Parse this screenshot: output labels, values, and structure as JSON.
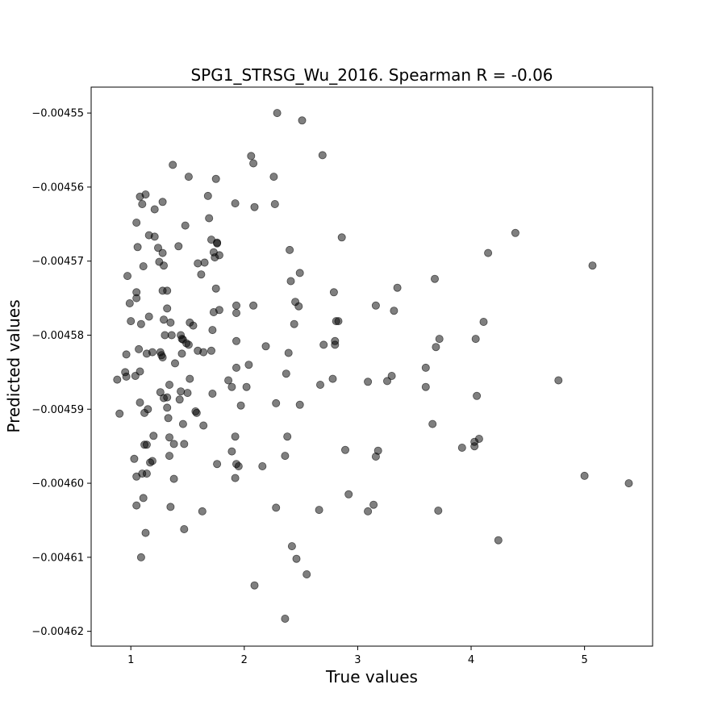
{
  "chart_data": {
    "type": "scatter",
    "title": "SPG1_STRSG_Wu_2016. Spearman R = -0.06",
    "xlabel": "True values",
    "ylabel": "Predicted values",
    "xlim": [
      0.65,
      5.6
    ],
    "ylim": [
      -0.004622,
      -0.0045465
    ],
    "x_ticks": [
      1,
      2,
      3,
      4,
      5
    ],
    "x_tick_labels": [
      "1",
      "2",
      "3",
      "4",
      "5"
    ],
    "y_ticks": [
      -0.00455,
      -0.00456,
      -0.00457,
      -0.00458,
      -0.00459,
      -0.0046,
      -0.00461,
      -0.00462
    ],
    "y_tick_labels": [
      "−0.00455",
      "−0.00456",
      "−0.00457",
      "−0.00458",
      "−0.00459",
      "−0.00460",
      "−0.00461",
      "−0.00462"
    ],
    "grid": false,
    "marker_color": "#000000",
    "marker_opacity": 0.5,
    "points": [
      [
        2.29,
        -0.00455
      ],
      [
        2.51,
        -0.004551
      ],
      [
        2.69,
        -0.0045557
      ],
      [
        2.06,
        -0.0045558
      ],
      [
        2.08,
        -0.0045568
      ],
      [
        1.37,
        -0.004557
      ],
      [
        1.51,
        -0.0045586
      ],
      [
        1.75,
        -0.0045589
      ],
      [
        2.26,
        -0.0045586
      ],
      [
        1.08,
        -0.0045613
      ],
      [
        1.13,
        -0.004561
      ],
      [
        1.68,
        -0.0045612
      ],
      [
        1.28,
        -0.004562
      ],
      [
        1.1,
        -0.0045623
      ],
      [
        1.92,
        -0.0045622
      ],
      [
        2.09,
        -0.0045627
      ],
      [
        2.27,
        -0.0045623
      ],
      [
        1.21,
        -0.004563
      ],
      [
        1.05,
        -0.0045648
      ],
      [
        1.48,
        -0.0045652
      ],
      [
        1.69,
        -0.0045642
      ],
      [
        1.16,
        -0.0045665
      ],
      [
        1.21,
        -0.0045667
      ],
      [
        1.06,
        -0.0045681
      ],
      [
        1.24,
        -0.0045682
      ],
      [
        1.42,
        -0.004568
      ],
      [
        1.71,
        -0.0045671
      ],
      [
        1.76,
        -0.0045675
      ],
      [
        1.76,
        -0.0045676
      ],
      [
        1.28,
        -0.0045689
      ],
      [
        1.73,
        -0.0045688
      ],
      [
        1.74,
        -0.0045695
      ],
      [
        1.78,
        -0.0045692
      ],
      [
        2.4,
        -0.0045685
      ],
      [
        2.86,
        -0.0045668
      ],
      [
        4.39,
        -0.0045662
      ],
      [
        4.15,
        -0.0045689
      ],
      [
        5.07,
        -0.0045706
      ],
      [
        1.25,
        -0.0045701
      ],
      [
        1.29,
        -0.0045706
      ],
      [
        1.11,
        -0.0045707
      ],
      [
        1.59,
        -0.0045703
      ],
      [
        1.65,
        -0.0045702
      ],
      [
        0.97,
        -0.004572
      ],
      [
        1.62,
        -0.0045718
      ],
      [
        2.49,
        -0.0045716
      ],
      [
        2.41,
        -0.0045727
      ],
      [
        3.68,
        -0.0045724
      ],
      [
        1.28,
        -0.004574
      ],
      [
        1.32,
        -0.004574
      ],
      [
        1.75,
        -0.0045737
      ],
      [
        1.05,
        -0.0045742
      ],
      [
        3.35,
        -0.0045736
      ],
      [
        2.79,
        -0.0045742
      ],
      [
        1.05,
        -0.004575
      ],
      [
        0.99,
        -0.0045757
      ],
      [
        2.45,
        -0.0045755
      ],
      [
        2.48,
        -0.0045761
      ],
      [
        2.08,
        -0.004576
      ],
      [
        1.93,
        -0.004576
      ],
      [
        3.16,
        -0.004576
      ],
      [
        1.32,
        -0.0045764
      ],
      [
        1.78,
        -0.0045766
      ],
      [
        1.73,
        -0.0045769
      ],
      [
        1.93,
        -0.004577
      ],
      [
        3.32,
        -0.0045767
      ],
      [
        1.16,
        -0.0045775
      ],
      [
        1.29,
        -0.0045779
      ],
      [
        1.0,
        -0.0045781
      ],
      [
        1.09,
        -0.0045785
      ],
      [
        1.35,
        -0.0045783
      ],
      [
        1.52,
        -0.0045783
      ],
      [
        1.55,
        -0.0045787
      ],
      [
        2.44,
        -0.0045785
      ],
      [
        2.81,
        -0.0045781
      ],
      [
        2.83,
        -0.0045781
      ],
      [
        4.11,
        -0.0045782
      ],
      [
        1.72,
        -0.0045793
      ],
      [
        1.3,
        -0.00458
      ],
      [
        1.36,
        -0.00458
      ],
      [
        1.44,
        -0.00458
      ],
      [
        1.45,
        -0.0045805
      ],
      [
        1.46,
        -0.0045806
      ],
      [
        1.49,
        -0.0045811
      ],
      [
        1.51,
        -0.0045813
      ],
      [
        3.72,
        -0.0045805
      ],
      [
        4.04,
        -0.0045805
      ],
      [
        1.93,
        -0.0045808
      ],
      [
        2.8,
        -0.0045808
      ],
      [
        2.7,
        -0.0045813
      ],
      [
        2.8,
        -0.0045813
      ],
      [
        2.19,
        -0.0045815
      ],
      [
        3.69,
        -0.0045816
      ],
      [
        1.07,
        -0.0045819
      ],
      [
        0.96,
        -0.0045826
      ],
      [
        1.14,
        -0.0045825
      ],
      [
        1.19,
        -0.0045823
      ],
      [
        1.26,
        -0.0045823
      ],
      [
        1.27,
        -0.0045827
      ],
      [
        1.28,
        -0.004583
      ],
      [
        1.45,
        -0.0045825
      ],
      [
        1.59,
        -0.0045821
      ],
      [
        1.64,
        -0.0045823
      ],
      [
        1.71,
        -0.0045821
      ],
      [
        2.39,
        -0.0045824
      ],
      [
        1.39,
        -0.0045838
      ],
      [
        2.04,
        -0.004584
      ],
      [
        1.93,
        -0.0045844
      ],
      [
        3.6,
        -0.0045844
      ],
      [
        0.95,
        -0.004585
      ],
      [
        1.08,
        -0.0045849
      ],
      [
        0.96,
        -0.0045856
      ],
      [
        1.04,
        -0.0045855
      ],
      [
        2.37,
        -0.0045852
      ],
      [
        3.3,
        -0.0045855
      ],
      [
        1.52,
        -0.0045859
      ],
      [
        2.78,
        -0.0045859
      ],
      [
        0.88,
        -0.004586
      ],
      [
        1.86,
        -0.0045861
      ],
      [
        4.77,
        -0.0045861
      ],
      [
        3.26,
        -0.0045862
      ],
      [
        3.09,
        -0.0045863
      ],
      [
        2.67,
        -0.0045867
      ],
      [
        1.34,
        -0.0045867
      ],
      [
        1.89,
        -0.004587
      ],
      [
        2.02,
        -0.004587
      ],
      [
        3.6,
        -0.004587
      ],
      [
        1.44,
        -0.0045876
      ],
      [
        1.5,
        -0.0045878
      ],
      [
        1.72,
        -0.0045879
      ],
      [
        1.26,
        -0.0045877
      ],
      [
        1.32,
        -0.0045884
      ],
      [
        1.29,
        -0.0045885
      ],
      [
        1.43,
        -0.0045887
      ],
      [
        4.05,
        -0.0045882
      ],
      [
        1.08,
        -0.0045891
      ],
      [
        2.28,
        -0.0045892
      ],
      [
        2.49,
        -0.0045894
      ],
      [
        1.97,
        -0.0045895
      ],
      [
        1.32,
        -0.0045898
      ],
      [
        1.15,
        -0.00459
      ],
      [
        1.12,
        -0.0045905
      ],
      [
        1.57,
        -0.0045903
      ],
      [
        1.58,
        -0.0045905
      ],
      [
        0.9,
        -0.0045906
      ],
      [
        1.33,
        -0.0045912
      ],
      [
        1.46,
        -0.004592
      ],
      [
        1.64,
        -0.0045922
      ],
      [
        3.66,
        -0.004592
      ],
      [
        1.34,
        -0.0045938
      ],
      [
        1.92,
        -0.0045937
      ],
      [
        2.38,
        -0.0045937
      ],
      [
        1.2,
        -0.0045936
      ],
      [
        4.07,
        -0.004594
      ],
      [
        4.03,
        -0.0045944
      ],
      [
        1.12,
        -0.0045948
      ],
      [
        1.14,
        -0.0045948
      ],
      [
        1.38,
        -0.0045947
      ],
      [
        1.47,
        -0.0045947
      ],
      [
        3.92,
        -0.0045952
      ],
      [
        4.03,
        -0.004595
      ],
      [
        2.89,
        -0.0045955
      ],
      [
        3.18,
        -0.0045956
      ],
      [
        1.89,
        -0.0045957
      ],
      [
        1.34,
        -0.0045963
      ],
      [
        2.36,
        -0.0045963
      ],
      [
        3.16,
        -0.0045964
      ],
      [
        1.03,
        -0.0045967
      ],
      [
        1.19,
        -0.004597
      ],
      [
        1.17,
        -0.0045972
      ],
      [
        1.76,
        -0.0045974
      ],
      [
        1.93,
        -0.0045974
      ],
      [
        1.95,
        -0.0045977
      ],
      [
        2.16,
        -0.0045977
      ],
      [
        1.1,
        -0.0045987
      ],
      [
        1.14,
        -0.0045987
      ],
      [
        1.05,
        -0.0045991
      ],
      [
        1.38,
        -0.0045994
      ],
      [
        1.92,
        -0.0045993
      ],
      [
        5.0,
        -0.004599
      ],
      [
        5.39,
        -0.0046
      ],
      [
        2.92,
        -0.0046015
      ],
      [
        1.11,
        -0.004602
      ],
      [
        1.05,
        -0.004603
      ],
      [
        1.35,
        -0.0046032
      ],
      [
        1.63,
        -0.0046038
      ],
      [
        2.28,
        -0.0046033
      ],
      [
        2.66,
        -0.0046036
      ],
      [
        3.09,
        -0.0046038
      ],
      [
        3.14,
        -0.0046029
      ],
      [
        3.71,
        -0.0046037
      ],
      [
        1.13,
        -0.0046067
      ],
      [
        1.47,
        -0.0046062
      ],
      [
        4.24,
        -0.0046077
      ],
      [
        2.42,
        -0.0046085
      ],
      [
        1.09,
        -0.00461
      ],
      [
        2.46,
        -0.0046102
      ],
      [
        2.55,
        -0.0046123
      ],
      [
        2.09,
        -0.0046138
      ],
      [
        2.36,
        -0.0046183
      ]
    ]
  }
}
